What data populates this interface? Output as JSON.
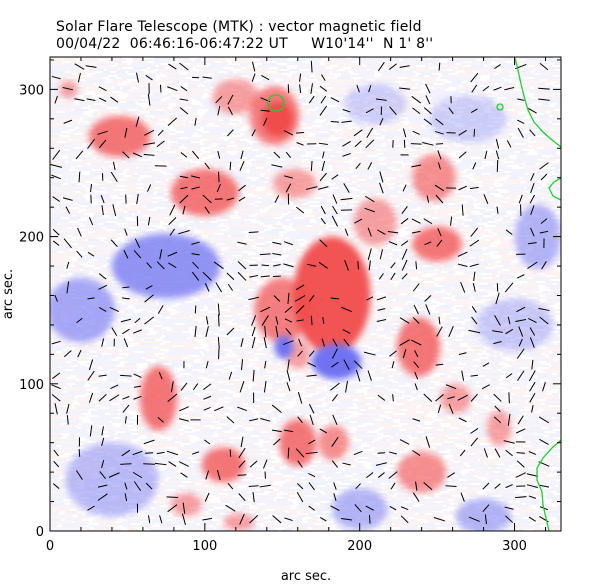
{
  "header": {
    "title": "Solar Flare Telescope (MTK) : vector magnetic field",
    "subtitle": "00/04/22  06:46:16-06:47:22 UT     W10'14''  N 1' 8''"
  },
  "colors": {
    "positive": "#f24b4b",
    "negative": "#6f72f2",
    "neutral_line": "#22cc33",
    "vector": "#000000"
  },
  "chart_data": {
    "type": "heatmap",
    "title": "Solar Flare Telescope (MTK) : vector magnetic field",
    "xlabel": "arc sec.",
    "ylabel": "arc sec.",
    "xlim": [
      0,
      330
    ],
    "ylim": [
      0,
      322
    ],
    "x_ticks": [
      0,
      100,
      200,
      300
    ],
    "y_ticks": [
      0,
      100,
      200,
      300
    ],
    "polarity_patches": [
      {
        "pol": "positive",
        "x": 147,
        "y": 280,
        "rx": 10,
        "ry": 12,
        "s": 1.0
      },
      {
        "pol": "positive",
        "x": 145,
        "y": 282,
        "rx": 16,
        "ry": 20,
        "s": 0.7
      },
      {
        "pol": "positive",
        "x": 120,
        "y": 295,
        "rx": 15,
        "ry": 12,
        "s": 0.5
      },
      {
        "pol": "positive",
        "x": 45,
        "y": 268,
        "rx": 20,
        "ry": 14,
        "s": 0.75
      },
      {
        "pol": "positive",
        "x": 12,
        "y": 300,
        "rx": 6,
        "ry": 6,
        "s": 0.5
      },
      {
        "pol": "positive",
        "x": 100,
        "y": 230,
        "rx": 22,
        "ry": 16,
        "s": 0.75
      },
      {
        "pol": "positive",
        "x": 158,
        "y": 236,
        "rx": 14,
        "ry": 10,
        "s": 0.5
      },
      {
        "pol": "positive",
        "x": 182,
        "y": 160,
        "rx": 25,
        "ry": 40,
        "s": 0.95
      },
      {
        "pol": "positive",
        "x": 150,
        "y": 150,
        "rx": 18,
        "ry": 22,
        "s": 0.7
      },
      {
        "pol": "positive",
        "x": 210,
        "y": 210,
        "rx": 14,
        "ry": 16,
        "s": 0.5
      },
      {
        "pol": "positive",
        "x": 250,
        "y": 195,
        "rx": 16,
        "ry": 12,
        "s": 0.75
      },
      {
        "pol": "positive",
        "x": 248,
        "y": 240,
        "rx": 14,
        "ry": 16,
        "s": 0.6
      },
      {
        "pol": "positive",
        "x": 238,
        "y": 125,
        "rx": 14,
        "ry": 20,
        "s": 0.75
      },
      {
        "pol": "positive",
        "x": 160,
        "y": 120,
        "rx": 8,
        "ry": 10,
        "s": 0.5
      },
      {
        "pol": "positive",
        "x": 70,
        "y": 90,
        "rx": 12,
        "ry": 22,
        "s": 0.75
      },
      {
        "pol": "positive",
        "x": 112,
        "y": 45,
        "rx": 14,
        "ry": 12,
        "s": 0.75
      },
      {
        "pol": "positive",
        "x": 160,
        "y": 60,
        "rx": 12,
        "ry": 16,
        "s": 0.75
      },
      {
        "pol": "positive",
        "x": 183,
        "y": 60,
        "rx": 10,
        "ry": 12,
        "s": 0.6
      },
      {
        "pol": "positive",
        "x": 240,
        "y": 40,
        "rx": 16,
        "ry": 14,
        "s": 0.6
      },
      {
        "pol": "positive",
        "x": 290,
        "y": 70,
        "rx": 8,
        "ry": 12,
        "s": 0.5
      },
      {
        "pol": "positive",
        "x": 88,
        "y": 18,
        "rx": 10,
        "ry": 8,
        "s": 0.5
      },
      {
        "pol": "positive",
        "x": 122,
        "y": 6,
        "rx": 10,
        "ry": 6,
        "s": 0.5
      },
      {
        "pol": "positive",
        "x": 262,
        "y": 90,
        "rx": 10,
        "ry": 10,
        "s": 0.5
      },
      {
        "pol": "negative",
        "x": 151,
        "y": 125,
        "rx": 6,
        "ry": 8,
        "s": 1.0
      },
      {
        "pol": "negative",
        "x": 185,
        "y": 115,
        "rx": 16,
        "ry": 12,
        "s": 1.0
      },
      {
        "pol": "negative",
        "x": 75,
        "y": 180,
        "rx": 35,
        "ry": 22,
        "s": 0.75
      },
      {
        "pol": "negative",
        "x": 20,
        "y": 150,
        "rx": 22,
        "ry": 22,
        "s": 0.6
      },
      {
        "pol": "negative",
        "x": 40,
        "y": 35,
        "rx": 30,
        "ry": 25,
        "s": 0.45
      },
      {
        "pol": "negative",
        "x": 200,
        "y": 15,
        "rx": 18,
        "ry": 14,
        "s": 0.5
      },
      {
        "pol": "negative",
        "x": 280,
        "y": 10,
        "rx": 18,
        "ry": 12,
        "s": 0.5
      },
      {
        "pol": "negative",
        "x": 315,
        "y": 200,
        "rx": 15,
        "ry": 22,
        "s": 0.5
      },
      {
        "pol": "negative",
        "x": 300,
        "y": 140,
        "rx": 25,
        "ry": 18,
        "s": 0.35
      },
      {
        "pol": "negative",
        "x": 210,
        "y": 290,
        "rx": 20,
        "ry": 14,
        "s": 0.3
      },
      {
        "pol": "negative",
        "x": 270,
        "y": 280,
        "rx": 25,
        "ry": 16,
        "s": 0.3
      }
    ]
  }
}
